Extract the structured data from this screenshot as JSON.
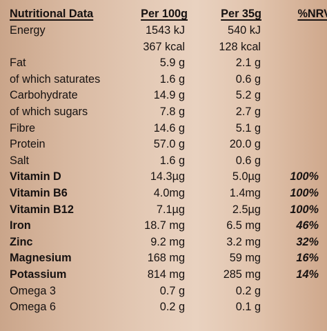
{
  "header": {
    "name": "Nutritional Data",
    "per100": "Per 100g",
    "per35": "Per 35g",
    "nrv": "%NRV"
  },
  "rows": [
    {
      "name": "Energy",
      "per100": "1543 kJ",
      "per35": "540 kJ",
      "nrv": "",
      "bold": false
    },
    {
      "name": "",
      "per100": "367 kcal",
      "per35": "128 kcal",
      "nrv": "",
      "bold": false
    },
    {
      "name": "Fat",
      "per100": "5.9 g",
      "per35": "2.1 g",
      "nrv": "",
      "bold": false
    },
    {
      "name": "of which saturates",
      "per100": "1.6 g",
      "per35": "0.6 g",
      "nrv": "",
      "bold": false
    },
    {
      "name": "Carbohydrate",
      "per100": "14.9 g",
      "per35": "5.2 g",
      "nrv": "",
      "bold": false
    },
    {
      "name": "of which sugars",
      "per100": "7.8 g",
      "per35": "2.7 g",
      "nrv": "",
      "bold": false
    },
    {
      "name": "Fibre",
      "per100": "14.6 g",
      "per35": "5.1 g",
      "nrv": "",
      "bold": false
    },
    {
      "name": "Protein",
      "per100": "57.0 g",
      "per35": "20.0 g",
      "nrv": "",
      "bold": false
    },
    {
      "name": "Salt",
      "per100": "1.6 g",
      "per35": "0.6 g",
      "nrv": "",
      "bold": false
    },
    {
      "name": "Vitamin D",
      "per100": "14.3µg",
      "per35": "5.0µg",
      "nrv": "100%",
      "bold": true
    },
    {
      "name": "Vitamin B6",
      "per100": "4.0mg",
      "per35": "1.4mg",
      "nrv": "100%",
      "bold": true
    },
    {
      "name": "Vitamin B12",
      "per100": "7.1µg",
      "per35": "2.5µg",
      "nrv": "100%",
      "bold": true
    },
    {
      "name": "Iron",
      "per100": "18.7 mg",
      "per35": "6.5 mg",
      "nrv": "46%",
      "bold": true
    },
    {
      "name": "Zinc",
      "per100": "9.2 mg",
      "per35": "3.2 mg",
      "nrv": "32%",
      "bold": true
    },
    {
      "name": "Magnesium",
      "per100": "168 mg",
      "per35": "59 mg",
      "nrv": "16%",
      "bold": true
    },
    {
      "name": "Potassium",
      "per100": "814 mg",
      "per35": "285 mg",
      "nrv": "14%",
      "bold": true
    },
    {
      "name": "Omega 3",
      "per100": "0.7 g",
      "per35": "0.2 g",
      "nrv": "",
      "bold": false
    },
    {
      "name": "Omega 6",
      "per100": "0.2 g",
      "per35": "0.1 g",
      "nrv": "",
      "bold": false
    }
  ]
}
